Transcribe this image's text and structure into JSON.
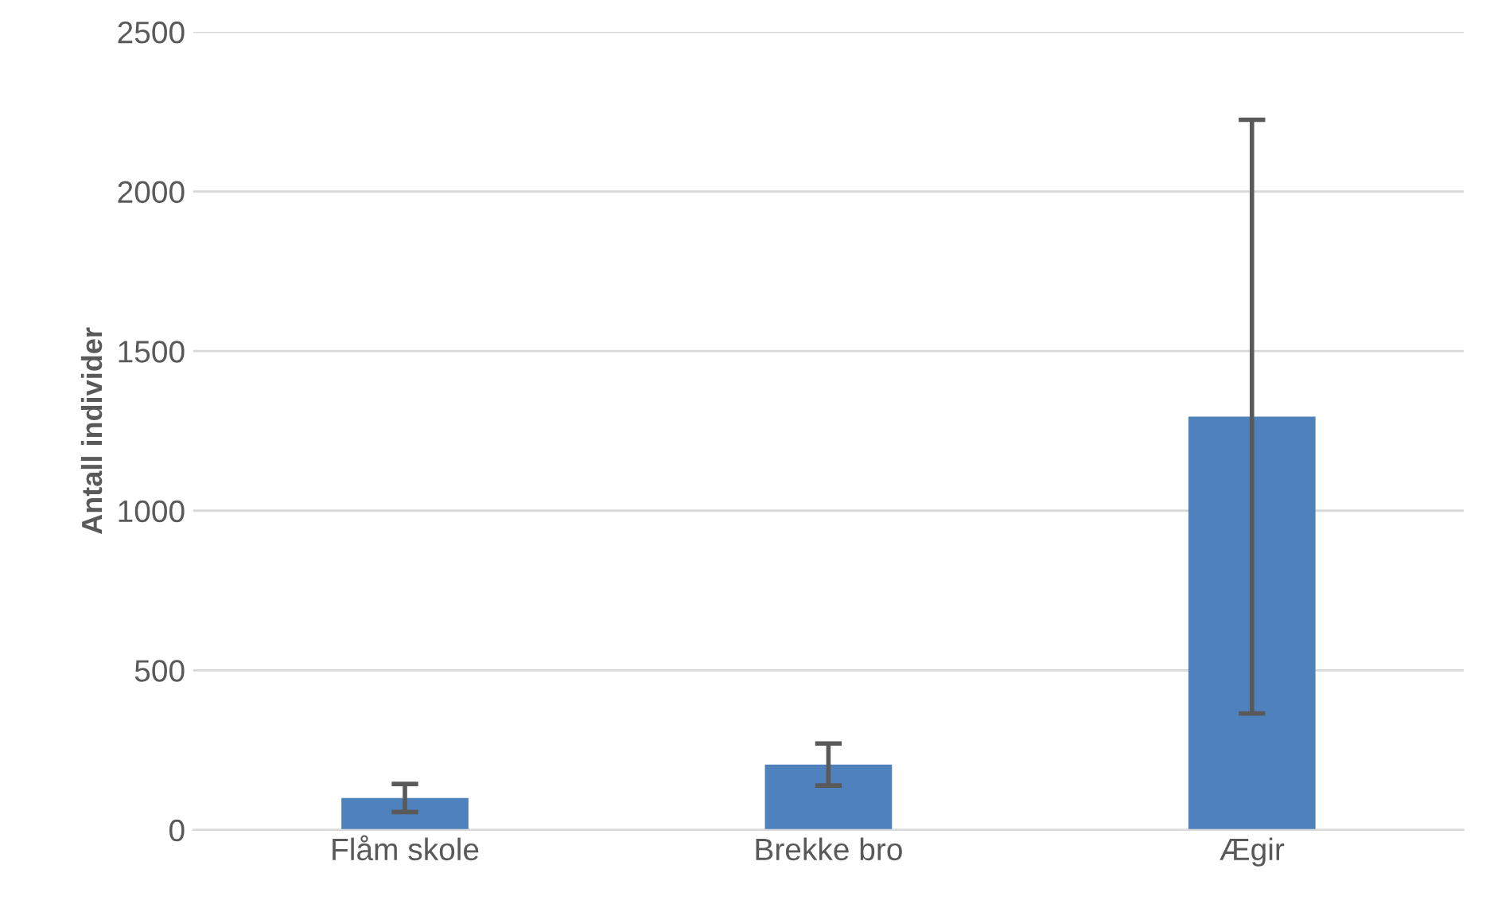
{
  "chart_data": {
    "type": "bar",
    "ylabel": "Antall individer",
    "categories": [
      "Flåm skole",
      "Brekke bro",
      "Ægir"
    ],
    "values": [
      100,
      205,
      1295
    ],
    "errors": [
      44,
      66,
      930
    ],
    "color": "#4f81bd",
    "ylim": [
      0,
      2500
    ],
    "yticks": [
      0,
      500,
      1000,
      1500,
      2000,
      2500
    ],
    "grid": "y",
    "legend": false
  }
}
